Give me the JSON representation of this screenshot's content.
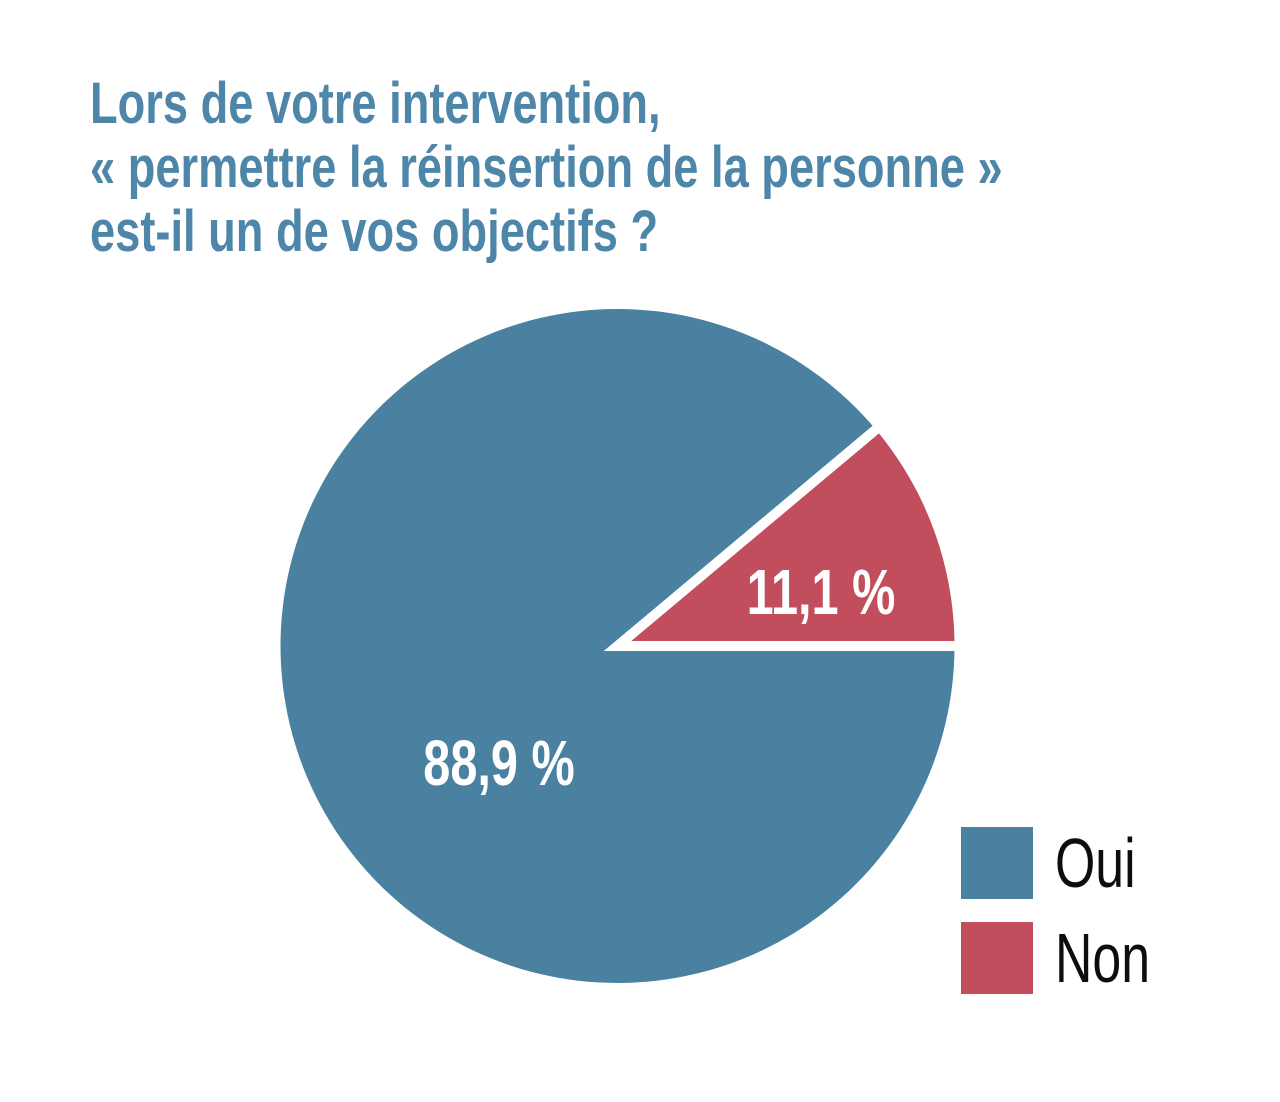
{
  "title": {
    "lines": [
      "Lors de votre intervention,",
      "« permettre la réinsertion de la personne »",
      "est-il un de vos objectifs ?"
    ]
  },
  "chart_data": {
    "type": "pie",
    "title": "Lors de votre intervention, « permettre la réinsertion de la personne » est-il un de vos objectifs ?",
    "unit": "%",
    "start_angle_deg": 0,
    "direction": "clockwise-from-east",
    "legend_position": "bottom-right",
    "slices": [
      {
        "label": "Oui",
        "value": 88.9,
        "display": "88,9 %",
        "color": "#4a81a0"
      },
      {
        "label": "Non",
        "value": 11.1,
        "display": "11,1 %",
        "color": "#c24d5c"
      }
    ]
  },
  "colors": {
    "background": "#ffffff",
    "title_text": "#4d86a8",
    "slice_oui": "#4a81a0",
    "slice_non": "#c24d5c",
    "slice_separator": "#ffffff",
    "pie_label_text": "#ffffff",
    "legend_text": "#0d0d0d"
  }
}
